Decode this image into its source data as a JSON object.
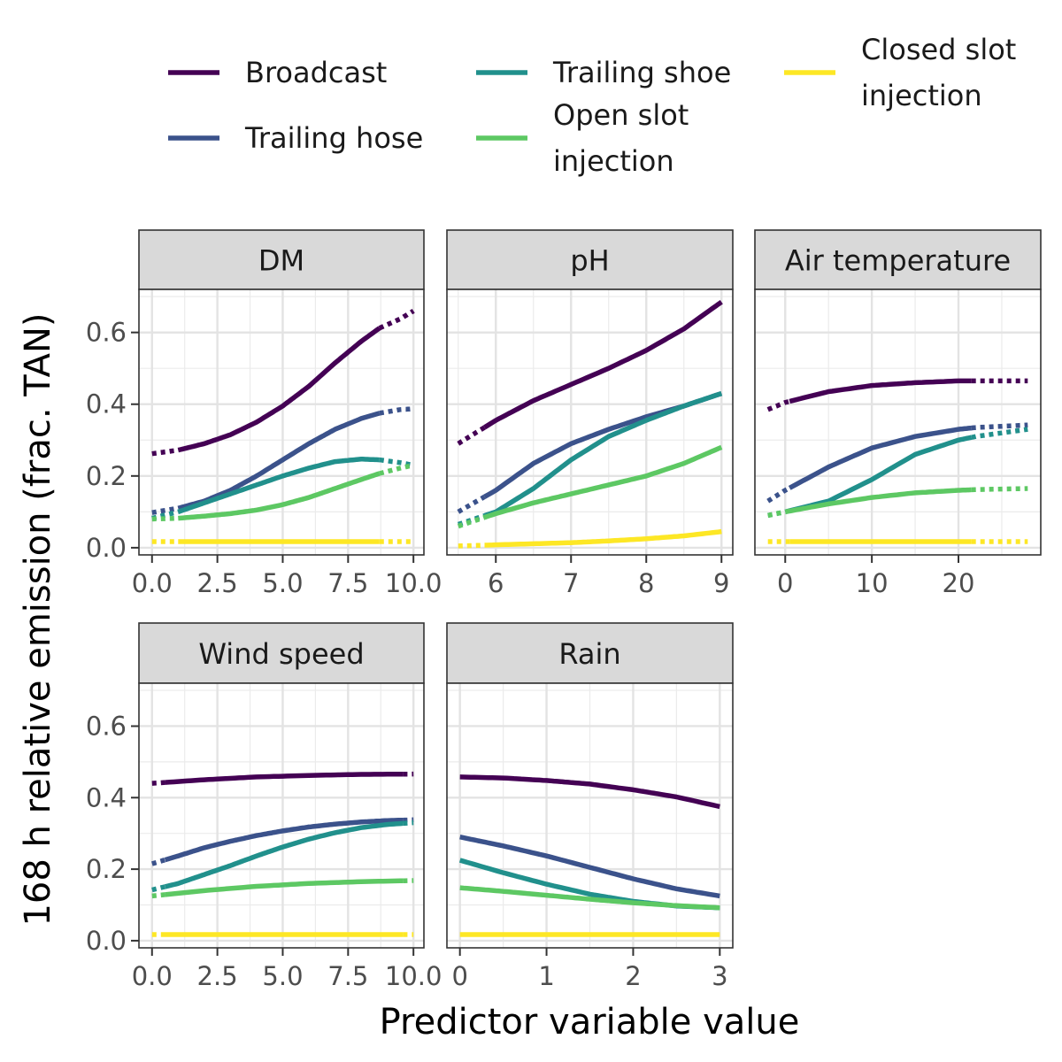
{
  "chart_data": {
    "type": "line",
    "xlabel": "Predictor variable value",
    "ylabel": "168 h relative emission (frac. TAN)",
    "ylim": [
      -0.02,
      0.72
    ],
    "y_ticks": [
      0.0,
      0.2,
      0.4,
      0.6
    ],
    "y_tick_labels": [
      "0.0",
      "0.2",
      "0.4",
      "0.6"
    ],
    "grid": true,
    "legend_position": "top",
    "legend": [
      {
        "key": "broadcast",
        "lines": [
          "Broadcast"
        ],
        "color": "#440154"
      },
      {
        "key": "trailing_hose",
        "lines": [
          "Trailing hose"
        ],
        "color": "#3B528B"
      },
      {
        "key": "trailing_shoe",
        "lines": [
          "Trailing shoe"
        ],
        "color": "#21908C"
      },
      {
        "key": "open_slot",
        "lines": [
          "Open slot",
          "injection"
        ],
        "color": "#5DC863"
      },
      {
        "key": "closed_slot",
        "lines": [
          "Closed slot",
          "injection"
        ],
        "color": "#FDE725"
      }
    ],
    "note": "solid segments within observed range, dotted segments extrapolated",
    "panels": [
      {
        "title": "DM",
        "xlim": [
          -0.5,
          10.4
        ],
        "x_ticks": [
          0,
          2.5,
          5,
          7.5,
          10
        ],
        "x_tick_labels": [
          "0.0",
          "2.5",
          "5.0",
          "7.5",
          "10.0"
        ],
        "series": [
          {
            "key": "broadcast",
            "x": [
              0,
              1,
              2,
              3,
              4,
              5,
              6,
              7,
              8,
              8.7,
              9.5,
              10
            ],
            "y": [
              0.262,
              0.272,
              0.29,
              0.315,
              0.35,
              0.395,
              0.45,
              0.515,
              0.575,
              0.612,
              0.638,
              0.66
            ],
            "solid_from": 1.0,
            "solid_to": 8.7
          },
          {
            "key": "trailing_hose",
            "x": [
              0,
              1,
              2,
              3,
              4,
              5,
              6,
              7,
              8,
              8.7,
              9.5,
              10
            ],
            "y": [
              0.098,
              0.11,
              0.13,
              0.16,
              0.2,
              0.245,
              0.29,
              0.33,
              0.36,
              0.375,
              0.385,
              0.387
            ],
            "solid_from": 1.0,
            "solid_to": 8.7
          },
          {
            "key": "trailing_shoe",
            "x": [
              0,
              1,
              2,
              3,
              4,
              5,
              6,
              7,
              8,
              8.7,
              9.5,
              10
            ],
            "y": [
              0.082,
              0.1,
              0.125,
              0.15,
              0.175,
              0.2,
              0.222,
              0.24,
              0.247,
              0.245,
              0.237,
              0.23
            ],
            "solid_from": 1.0,
            "solid_to": 8.7
          },
          {
            "key": "open_slot",
            "x": [
              0,
              1,
              2,
              3,
              4,
              5,
              6,
              7,
              8,
              8.7,
              9.5,
              10
            ],
            "y": [
              0.08,
              0.082,
              0.088,
              0.095,
              0.105,
              0.12,
              0.14,
              0.165,
              0.19,
              0.207,
              0.222,
              0.23
            ],
            "solid_from": 1.0,
            "solid_to": 8.7
          },
          {
            "key": "closed_slot",
            "x": [
              0,
              10
            ],
            "y": [
              0.017,
              0.017
            ],
            "solid_from": 1.0,
            "solid_to": 8.7
          }
        ]
      },
      {
        "title": "pH",
        "xlim": [
          5.35,
          9.15
        ],
        "x_ticks": [
          6,
          7,
          8,
          9
        ],
        "x_tick_labels": [
          "6",
          "7",
          "8",
          "9"
        ],
        "series": [
          {
            "key": "broadcast",
            "x": [
              5.5,
              6,
              6.5,
              7,
              7.5,
              8,
              8.5,
              9
            ],
            "y": [
              0.29,
              0.355,
              0.41,
              0.455,
              0.5,
              0.55,
              0.61,
              0.685
            ],
            "solid_from": 5.85,
            "solid_to": 9.0
          },
          {
            "key": "trailing_hose",
            "x": [
              5.5,
              6,
              6.5,
              7,
              7.5,
              8,
              8.5,
              9
            ],
            "y": [
              0.1,
              0.16,
              0.235,
              0.29,
              0.33,
              0.365,
              0.395,
              0.43
            ],
            "solid_from": 5.85,
            "solid_to": 9.0
          },
          {
            "key": "trailing_shoe",
            "x": [
              5.5,
              6,
              6.5,
              7,
              7.5,
              8,
              8.5,
              9
            ],
            "y": [
              0.065,
              0.1,
              0.165,
              0.245,
              0.31,
              0.355,
              0.395,
              0.43
            ],
            "solid_from": 5.85,
            "solid_to": 9.0
          },
          {
            "key": "open_slot",
            "x": [
              5.5,
              6,
              6.5,
              7,
              7.5,
              8,
              8.5,
              9
            ],
            "y": [
              0.06,
              0.095,
              0.125,
              0.15,
              0.175,
              0.2,
              0.235,
              0.28
            ],
            "solid_from": 5.85,
            "solid_to": 9.0
          },
          {
            "key": "closed_slot",
            "x": [
              5.5,
              6,
              6.5,
              7,
              7.5,
              8,
              8.5,
              9
            ],
            "y": [
              0.005,
              0.008,
              0.011,
              0.014,
              0.019,
              0.025,
              0.033,
              0.045
            ],
            "solid_from": 5.85,
            "solid_to": 9.0
          }
        ]
      },
      {
        "title": "Air temperature",
        "xlim": [
          -3.5,
          29.5
        ],
        "x_ticks": [
          0,
          10,
          20
        ],
        "x_tick_labels": [
          "0",
          "10",
          "20"
        ],
        "series": [
          {
            "key": "broadcast",
            "x": [
              -2,
              0,
              5,
              10,
              15,
              20,
              22,
              28
            ],
            "y": [
              0.385,
              0.405,
              0.435,
              0.452,
              0.46,
              0.465,
              0.465,
              0.465
            ],
            "solid_from": 0.5,
            "solid_to": 21.5
          },
          {
            "key": "trailing_hose",
            "x": [
              -2,
              0,
              5,
              10,
              15,
              20,
              22,
              28
            ],
            "y": [
              0.13,
              0.16,
              0.225,
              0.278,
              0.31,
              0.33,
              0.335,
              0.342
            ],
            "solid_from": 0.5,
            "solid_to": 21.5
          },
          {
            "key": "trailing_shoe",
            "x": [
              -2,
              0,
              5,
              10,
              15,
              20,
              22,
              28
            ],
            "y": [
              0.09,
              0.1,
              0.13,
              0.19,
              0.26,
              0.3,
              0.31,
              0.33
            ],
            "solid_from": 0.5,
            "solid_to": 21.5
          },
          {
            "key": "open_slot",
            "x": [
              -2,
              0,
              5,
              10,
              15,
              20,
              22,
              28
            ],
            "y": [
              0.09,
              0.1,
              0.122,
              0.14,
              0.153,
              0.16,
              0.162,
              0.165
            ],
            "solid_from": 0.5,
            "solid_to": 21.5
          },
          {
            "key": "closed_slot",
            "x": [
              -2,
              28
            ],
            "y": [
              0.017,
              0.017
            ],
            "solid_from": 0.5,
            "solid_to": 21.5
          }
        ]
      },
      {
        "title": "Wind speed",
        "xlim": [
          -0.5,
          10.4
        ],
        "x_ticks": [
          0,
          2.5,
          5,
          7.5,
          10
        ],
        "x_tick_labels": [
          "0.0",
          "2.5",
          "5.0",
          "7.5",
          "10.0"
        ],
        "series": [
          {
            "key": "broadcast",
            "x": [
              0,
              2,
              4,
              6,
              8,
              10
            ],
            "y": [
              0.44,
              0.45,
              0.458,
              0.462,
              0.465,
              0.466
            ],
            "solid_from": 0.5,
            "solid_to": 9.6
          },
          {
            "key": "trailing_hose",
            "x": [
              0,
              1,
              2,
              3,
              4,
              5,
              6,
              7,
              8,
              9,
              10
            ],
            "y": [
              0.215,
              0.237,
              0.26,
              0.278,
              0.294,
              0.307,
              0.318,
              0.326,
              0.332,
              0.336,
              0.338
            ],
            "solid_from": 0.5,
            "solid_to": 9.6
          },
          {
            "key": "trailing_shoe",
            "x": [
              0,
              1,
              2,
              3,
              4,
              5,
              6,
              7,
              8,
              9,
              10
            ],
            "y": [
              0.142,
              0.16,
              0.185,
              0.21,
              0.237,
              0.262,
              0.284,
              0.302,
              0.316,
              0.325,
              0.33
            ],
            "solid_from": 0.5,
            "solid_to": 9.6
          },
          {
            "key": "open_slot",
            "x": [
              0,
              2,
              4,
              6,
              8,
              10
            ],
            "y": [
              0.125,
              0.14,
              0.152,
              0.16,
              0.165,
              0.168
            ],
            "solid_from": 0.5,
            "solid_to": 9.6
          },
          {
            "key": "closed_slot",
            "x": [
              0,
              10
            ],
            "y": [
              0.017,
              0.017
            ],
            "solid_from": 0.5,
            "solid_to": 9.6
          }
        ]
      },
      {
        "title": "Rain",
        "xlim": [
          -0.15,
          3.15
        ],
        "x_ticks": [
          0,
          1,
          2,
          3
        ],
        "x_tick_labels": [
          "0",
          "1",
          "2",
          "3"
        ],
        "series": [
          {
            "key": "broadcast",
            "x": [
              0,
              0.5,
              1,
              1.5,
              2,
              2.5,
              3
            ],
            "y": [
              0.458,
              0.455,
              0.448,
              0.438,
              0.422,
              0.402,
              0.375
            ],
            "solid_from": 0,
            "solid_to": 3
          },
          {
            "key": "trailing_hose",
            "x": [
              0,
              0.5,
              1,
              1.5,
              2,
              2.5,
              3
            ],
            "y": [
              0.29,
              0.265,
              0.237,
              0.205,
              0.173,
              0.145,
              0.125
            ],
            "solid_from": 0,
            "solid_to": 3
          },
          {
            "key": "trailing_shoe",
            "x": [
              0,
              0.5,
              1,
              1.5,
              2,
              2.5,
              3
            ],
            "y": [
              0.225,
              0.19,
              0.158,
              0.13,
              0.11,
              0.097,
              0.092
            ],
            "solid_from": 0,
            "solid_to": 3
          },
          {
            "key": "open_slot",
            "x": [
              0,
              0.5,
              1,
              1.5,
              2,
              2.5,
              3
            ],
            "y": [
              0.148,
              0.138,
              0.127,
              0.116,
              0.106,
              0.098,
              0.092
            ],
            "solid_from": 0,
            "solid_to": 3
          },
          {
            "key": "closed_slot",
            "x": [
              0,
              3
            ],
            "y": [
              0.017,
              0.017
            ],
            "solid_from": 0,
            "solid_to": 3
          }
        ]
      }
    ]
  }
}
